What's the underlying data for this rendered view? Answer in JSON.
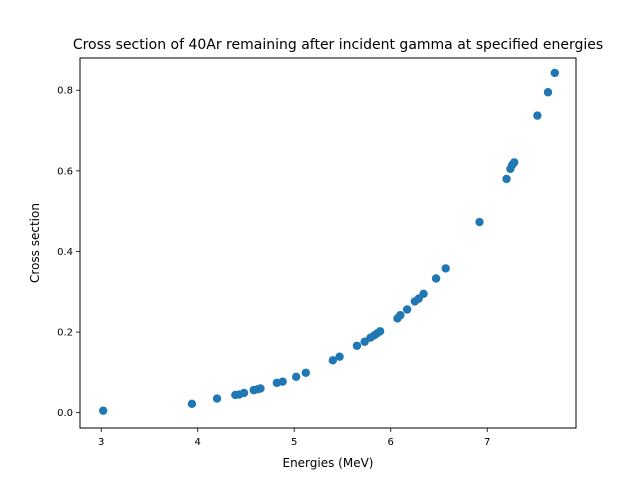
{
  "chart_data": {
    "type": "scatter",
    "title": "Cross section of 40Ar remaining after incident gamma at specified energies",
    "xlabel": "Energies (MeV)",
    "ylabel": "Cross section",
    "xlim": [
      2.78,
      7.92
    ],
    "ylim": [
      -0.038,
      0.88
    ],
    "xticks": [
      3,
      4,
      5,
      6,
      7
    ],
    "yticks": [
      0.0,
      0.2,
      0.4,
      0.6,
      0.8
    ],
    "xtick_labels": [
      "3",
      "4",
      "5",
      "6",
      "7"
    ],
    "ytick_labels": [
      "0.0",
      "0.2",
      "0.4",
      "0.6",
      "0.8"
    ],
    "grid": false,
    "marker_color": "#1f77b4",
    "series": [
      {
        "points": [
          [
            3.02,
            0.005
          ],
          [
            3.94,
            0.022
          ],
          [
            4.2,
            0.035
          ],
          [
            4.39,
            0.044
          ],
          [
            4.43,
            0.045
          ],
          [
            4.48,
            0.049
          ],
          [
            4.58,
            0.056
          ],
          [
            4.62,
            0.058
          ],
          [
            4.65,
            0.06
          ],
          [
            4.82,
            0.074
          ],
          [
            4.88,
            0.077
          ],
          [
            5.02,
            0.089
          ],
          [
            5.12,
            0.099
          ],
          [
            5.4,
            0.13
          ],
          [
            5.47,
            0.139
          ],
          [
            5.65,
            0.166
          ],
          [
            5.73,
            0.176
          ],
          [
            5.79,
            0.186
          ],
          [
            5.83,
            0.192
          ],
          [
            5.86,
            0.197
          ],
          [
            5.89,
            0.202
          ],
          [
            6.07,
            0.234
          ],
          [
            6.1,
            0.242
          ],
          [
            6.17,
            0.256
          ],
          [
            6.25,
            0.276
          ],
          [
            6.29,
            0.283
          ],
          [
            6.34,
            0.295
          ],
          [
            6.47,
            0.333
          ],
          [
            6.57,
            0.358
          ],
          [
            6.92,
            0.473
          ],
          [
            7.2,
            0.58
          ],
          [
            7.24,
            0.605
          ],
          [
            7.26,
            0.615
          ],
          [
            7.28,
            0.621
          ],
          [
            7.52,
            0.737
          ],
          [
            7.63,
            0.795
          ],
          [
            7.7,
            0.843
          ]
        ]
      }
    ]
  }
}
